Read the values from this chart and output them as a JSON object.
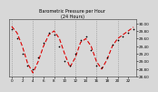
{
  "title": "Barometric Pressure per Hour (24 Hours)",
  "background_color": "#d8d8d8",
  "plot_bg_color": "#d8d8d8",
  "grid_color": "#888888",
  "line_color": "#dd0000",
  "dot_color": "#000000",
  "hours": [
    0,
    1,
    2,
    3,
    4,
    5,
    6,
    7,
    8,
    9,
    10,
    11,
    12,
    13,
    14,
    15,
    16,
    17,
    18,
    19,
    20,
    21,
    22,
    23
  ],
  "pressure_red": [
    29.92,
    29.75,
    29.4,
    28.95,
    28.7,
    29.0,
    29.4,
    29.7,
    29.8,
    29.6,
    29.2,
    28.85,
    29.1,
    29.5,
    29.6,
    29.4,
    29.0,
    28.8,
    29.05,
    29.4,
    29.6,
    29.7,
    29.8,
    29.9
  ],
  "pressure_dots": [
    29.85,
    29.6,
    29.2,
    28.9,
    28.8,
    29.1,
    29.5,
    29.75,
    29.7,
    29.4,
    29.0,
    28.9,
    29.2,
    29.55,
    29.65,
    29.3,
    28.9,
    28.85,
    29.1,
    29.45,
    29.55,
    29.65,
    29.75,
    29.85
  ],
  "ylim_min": 28.6,
  "ylim_max": 30.1,
  "ytick_values": [
    28.6,
    28.8,
    29.0,
    29.2,
    29.4,
    29.6,
    29.8,
    30.0
  ],
  "xtick_positions": [
    0,
    2,
    4,
    6,
    8,
    10,
    12,
    14,
    16,
    18,
    20,
    22
  ],
  "xtick_labels": [
    "0",
    "2",
    "4",
    "6",
    "8",
    "10",
    "12",
    "14",
    "16",
    "18",
    "20",
    "22"
  ],
  "vgrid_positions": [
    0,
    4,
    8,
    12,
    16,
    20
  ]
}
